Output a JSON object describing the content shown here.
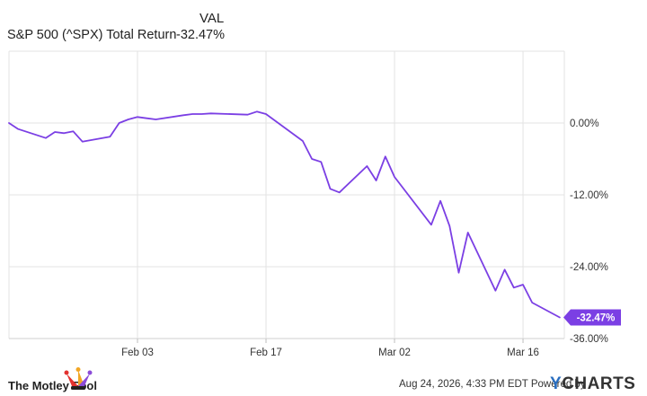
{
  "legend": {
    "val_header": "VAL",
    "series_name": "S&P 500 (^SPX) Total Return",
    "series_value": "-32.47%"
  },
  "colors": {
    "series": "#7b3fe4",
    "grid": "#e3e3e3",
    "axis_text": "#333333",
    "tag_text": "#ffffff"
  },
  "footer": {
    "brand": "The Motley Fool",
    "timestamp": "Aug 24, 2026, 4:33 PM EDT",
    "powered_by": "Powered by",
    "provider": "YCHARTS"
  },
  "chart_data": {
    "type": "line",
    "title": "",
    "xlabel": "",
    "ylabel": "",
    "x_ticks": [
      "Feb 03",
      "Feb 17",
      "Mar 02",
      "Mar 16"
    ],
    "x_tick_days": [
      14,
      28,
      42,
      56
    ],
    "x_range_days": [
      0,
      60.5
    ],
    "y_ticks": [
      0,
      -12,
      -24,
      -36
    ],
    "y_tick_labels": [
      "0.00%",
      "-12.00%",
      "-24.00%",
      "-36.00%"
    ],
    "ylim": [
      -36,
      12
    ],
    "last_value_label": "-32.47%",
    "grid": true,
    "series": [
      {
        "name": "S&P 500 (^SPX) Total Return",
        "x_days": [
          0,
          1,
          4,
          5,
          6,
          7,
          8,
          11,
          12,
          13,
          14,
          15,
          16,
          19,
          20,
          21,
          22,
          26,
          27,
          28,
          32,
          33,
          34,
          35,
          36,
          39,
          40,
          41,
          42,
          46,
          47,
          48,
          49,
          50,
          53,
          54,
          55,
          56,
          57,
          60
        ],
        "y": [
          0.0,
          -1.0,
          -2.5,
          -1.5,
          -1.7,
          -1.4,
          -3.1,
          -2.3,
          0.0,
          0.6,
          1.0,
          0.8,
          0.6,
          1.3,
          1.5,
          1.5,
          1.6,
          1.4,
          1.9,
          1.5,
          -3.0,
          -6.0,
          -6.5,
          -11.0,
          -11.6,
          -7.2,
          -9.6,
          -5.6,
          -9.0,
          -17.0,
          -13.0,
          -17.2,
          -25.0,
          -18.3,
          -28.0,
          -24.5,
          -27.5,
          -27.0,
          -30.0,
          -32.47
        ]
      }
    ]
  }
}
